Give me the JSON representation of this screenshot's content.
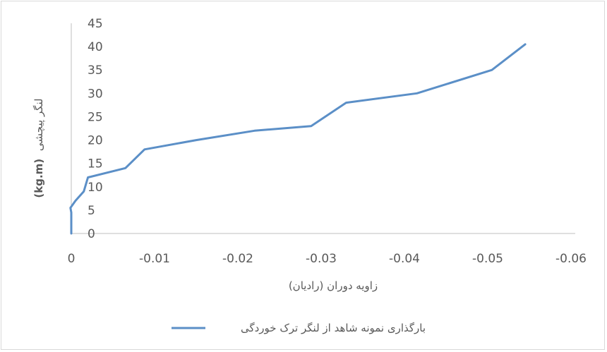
{
  "chart_data": {
    "type": "line",
    "xlabel": "زاویه دوران (رادیان)",
    "ylabel_unit": "(kg.m)",
    "ylabel_text": "لنگر پیچشی",
    "xlim": [
      0,
      -0.06
    ],
    "ylim": [
      0,
      45
    ],
    "x_ticks": [
      "0",
      "-0.01",
      "-0.02",
      "-0.03",
      "-0.04",
      "-0.05",
      "-0.06"
    ],
    "y_ticks": [
      "0",
      "5",
      "10",
      "15",
      "20",
      "25",
      "30",
      "35",
      "40",
      "45"
    ],
    "x_tick_values": [
      0,
      -0.01,
      -0.02,
      -0.03,
      -0.04,
      -0.05,
      -0.06
    ],
    "y_tick_values": [
      0,
      5,
      10,
      15,
      20,
      25,
      30,
      35,
      40,
      45
    ],
    "series": [
      {
        "name": "بارگذاری نمونه شاهد از لنگر ترک خوردگی",
        "color": "#5b8fc7",
        "x": [
          0,
          0,
          0.0001,
          -0.0005,
          -0.0015,
          -0.002,
          -0.0065,
          -0.0088,
          -0.015,
          -0.022,
          -0.0288,
          -0.033,
          -0.0415,
          -0.0505,
          -0.0545
        ],
        "y": [
          0,
          4.5,
          5.5,
          7,
          9,
          12,
          14,
          18,
          20,
          22,
          23,
          28,
          30,
          35,
          40.5
        ]
      }
    ],
    "legend_position": "bottom",
    "grid": false
  }
}
